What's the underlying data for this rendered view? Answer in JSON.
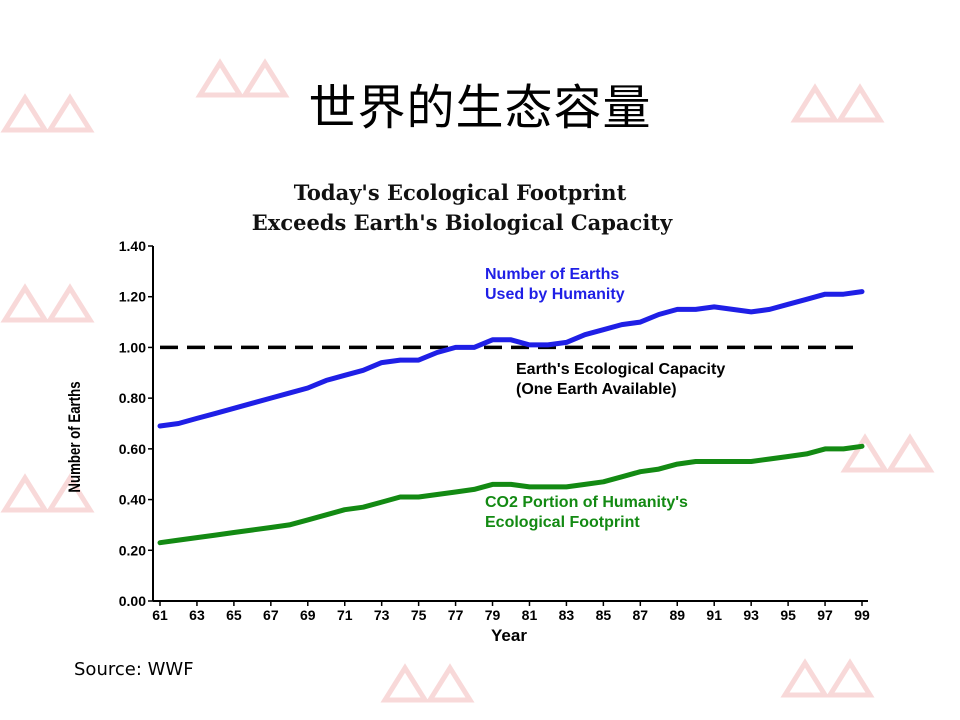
{
  "slide": {
    "title": "世界的生态容量",
    "source": "Source: WWF"
  },
  "chart_data": {
    "type": "line",
    "title": "Today's Ecological Footprint",
    "subtitle": "Exceeds Earth's Biological Capacity",
    "xlabel": "Year",
    "ylabel": "Number of Earths",
    "xlim": [
      61,
      99
    ],
    "ylim": [
      0,
      1.4
    ],
    "x_ticks": [
      "61",
      "63",
      "65",
      "67",
      "69",
      "71",
      "73",
      "75",
      "77",
      "79",
      "81",
      "83",
      "85",
      "87",
      "89",
      "91",
      "93",
      "95",
      "97",
      "99"
    ],
    "y_ticks": [
      "0.00",
      "0.20",
      "0.40",
      "0.60",
      "0.80",
      "1.00",
      "1.20",
      "1.40"
    ],
    "series": [
      {
        "name": "Number of Earths Used by Humanity",
        "label_lines": [
          "Number of Earths",
          "Used by Humanity"
        ],
        "color": "#1f1fe6",
        "x": [
          61,
          62,
          63,
          64,
          65,
          66,
          67,
          68,
          69,
          70,
          71,
          72,
          73,
          74,
          75,
          76,
          77,
          78,
          79,
          80,
          81,
          82,
          83,
          84,
          85,
          86,
          87,
          88,
          89,
          90,
          91,
          92,
          93,
          94,
          95,
          96,
          97,
          98,
          99
        ],
        "values": [
          0.69,
          0.7,
          0.72,
          0.74,
          0.76,
          0.78,
          0.8,
          0.82,
          0.84,
          0.87,
          0.89,
          0.91,
          0.94,
          0.95,
          0.95,
          0.98,
          1.0,
          1.0,
          1.03,
          1.03,
          1.01,
          1.01,
          1.02,
          1.05,
          1.07,
          1.09,
          1.1,
          1.13,
          1.15,
          1.15,
          1.16,
          1.15,
          1.14,
          1.15,
          1.17,
          1.19,
          1.21,
          1.21,
          1.22
        ]
      },
      {
        "name": "CO2 Portion of Humanity's Ecological Footprint",
        "label_lines": [
          "CO2 Portion of Humanity's",
          "Ecological Footprint"
        ],
        "color": "#138a13",
        "x": [
          61,
          62,
          63,
          64,
          65,
          66,
          67,
          68,
          69,
          70,
          71,
          72,
          73,
          74,
          75,
          76,
          77,
          78,
          79,
          80,
          81,
          82,
          83,
          84,
          85,
          86,
          87,
          88,
          89,
          90,
          91,
          92,
          93,
          94,
          95,
          96,
          97,
          98,
          99
        ],
        "values": [
          0.23,
          0.24,
          0.25,
          0.26,
          0.27,
          0.28,
          0.29,
          0.3,
          0.32,
          0.34,
          0.36,
          0.37,
          0.39,
          0.41,
          0.41,
          0.42,
          0.43,
          0.44,
          0.46,
          0.46,
          0.45,
          0.45,
          0.45,
          0.46,
          0.47,
          0.49,
          0.51,
          0.52,
          0.54,
          0.55,
          0.55,
          0.55,
          0.55,
          0.56,
          0.57,
          0.58,
          0.6,
          0.6,
          0.61
        ]
      }
    ],
    "reference_line": {
      "value": 1.0,
      "style": "dashed",
      "color": "#000000",
      "label_lines": [
        "Earth's Ecological Capacity",
        "(One Earth Available)"
      ]
    },
    "grid": false
  }
}
